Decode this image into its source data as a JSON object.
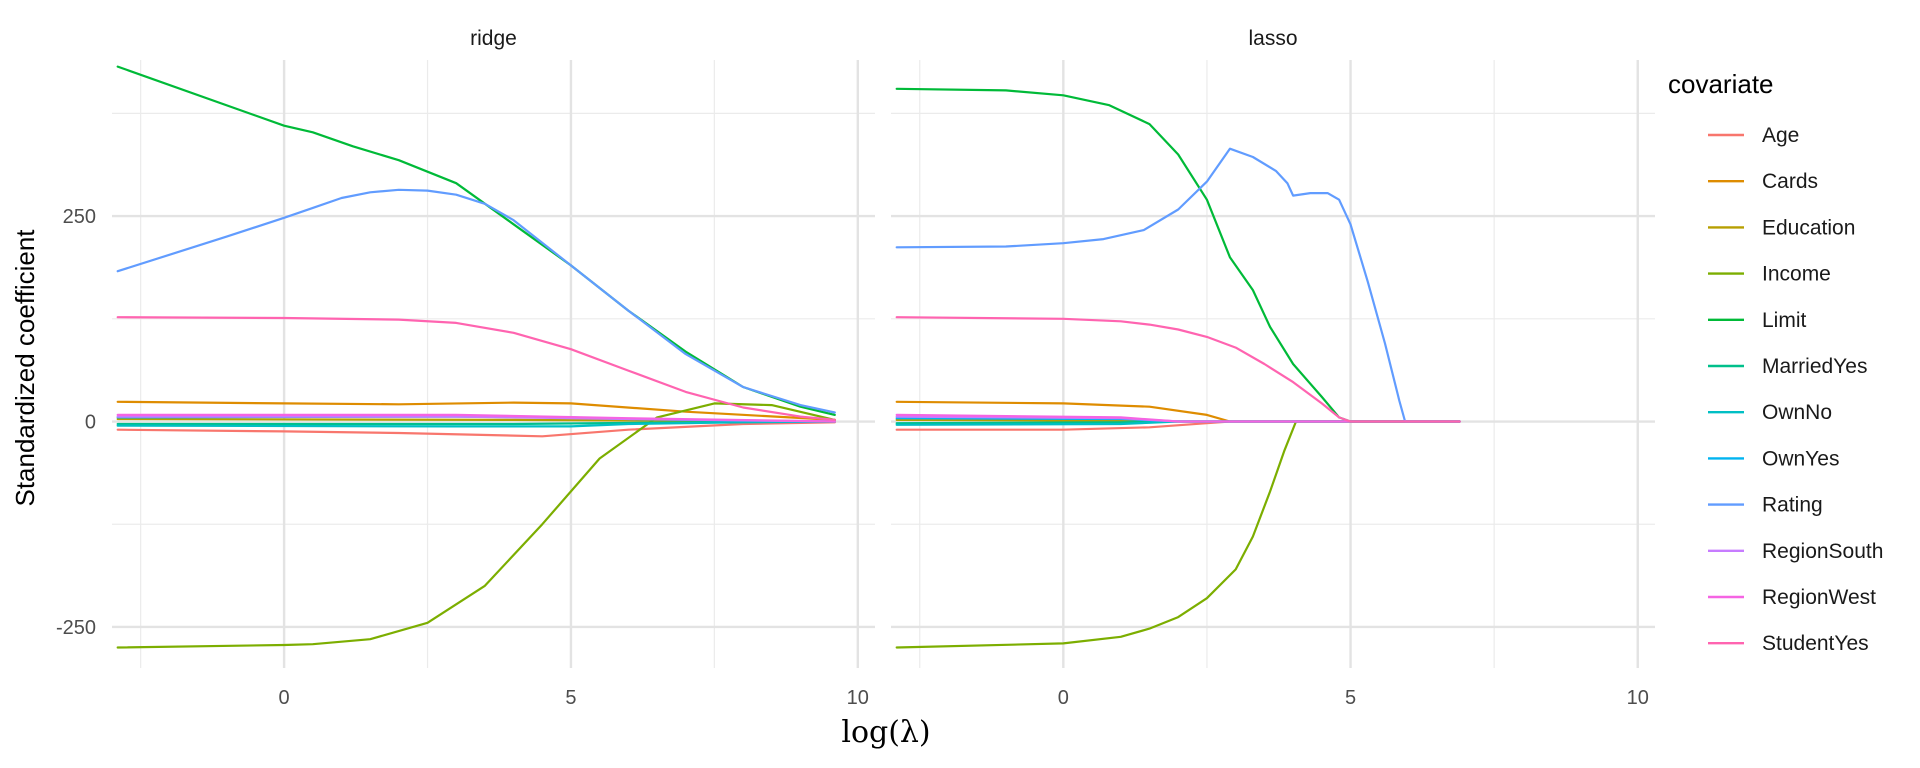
{
  "chart_data": {
    "type": "line",
    "xlabel": "log(λ)",
    "ylabel": "Standardized coefficient",
    "xlim": [
      -3,
      10.3
    ],
    "ylim": [
      -300,
      440
    ],
    "x_ticks": [
      0,
      5,
      10
    ],
    "y_ticks": [
      -250,
      0,
      250
    ],
    "legend": {
      "title": "covariate",
      "position": "right",
      "entries": [
        {
          "name": "Age",
          "color": "#F8766D"
        },
        {
          "name": "Cards",
          "color": "#DE8C00"
        },
        {
          "name": "Education",
          "color": "#B79F00"
        },
        {
          "name": "Income",
          "color": "#7CAE00"
        },
        {
          "name": "Limit",
          "color": "#00BA38"
        },
        {
          "name": "MarriedYes",
          "color": "#00C08B"
        },
        {
          "name": "OwnNo",
          "color": "#00BFC4"
        },
        {
          "name": "OwnYes",
          "color": "#00B4F0"
        },
        {
          "name": "Rating",
          "color": "#619CFF"
        },
        {
          "name": "RegionSouth",
          "color": "#C77CFF"
        },
        {
          "name": "RegionWest",
          "color": "#F564E3"
        },
        {
          "name": "StudentYes",
          "color": "#FF64B0"
        }
      ]
    },
    "panels": [
      {
        "title": "ridge",
        "series": [
          {
            "name": "Age",
            "points": [
              [
                -2.9,
                -10
              ],
              [
                0,
                -12
              ],
              [
                2,
                -14
              ],
              [
                4.5,
                -18
              ],
              [
                6,
                -10
              ],
              [
                8,
                -3
              ],
              [
                9.6,
                -1
              ]
            ]
          },
          {
            "name": "Cards",
            "points": [
              [
                -2.9,
                24
              ],
              [
                0,
                22
              ],
              [
                2,
                21
              ],
              [
                4,
                23
              ],
              [
                5,
                22
              ],
              [
                7,
                12
              ],
              [
                9.6,
                2
              ]
            ]
          },
          {
            "name": "Education",
            "points": [
              [
                -2.9,
                3
              ],
              [
                4,
                2
              ],
              [
                7,
                1
              ],
              [
                9.6,
                0
              ]
            ]
          },
          {
            "name": "Income",
            "points": [
              [
                -2.9,
                -275
              ],
              [
                0,
                -272
              ],
              [
                0.5,
                -271
              ],
              [
                1.5,
                -265
              ],
              [
                2.5,
                -245
              ],
              [
                3.5,
                -200
              ],
              [
                4.5,
                -125
              ],
              [
                5.5,
                -45
              ],
              [
                6.5,
                5
              ],
              [
                7.5,
                22
              ],
              [
                8.5,
                20
              ],
              [
                9.6,
                2
              ]
            ]
          },
          {
            "name": "Limit",
            "points": [
              [
                -2.9,
                432
              ],
              [
                0,
                360
              ],
              [
                0.5,
                352
              ],
              [
                1.2,
                335
              ],
              [
                2,
                318
              ],
              [
                3,
                290
              ],
              [
                4,
                240
              ],
              [
                5,
                190
              ],
              [
                6,
                135
              ],
              [
                7,
                85
              ],
              [
                8,
                42
              ],
              [
                9,
                18
              ],
              [
                9.6,
                8
              ]
            ]
          },
          {
            "name": "MarriedYes",
            "points": [
              [
                -2.9,
                -3
              ],
              [
                4,
                -3
              ],
              [
                7,
                -1
              ],
              [
                9.6,
                0
              ]
            ]
          },
          {
            "name": "OwnNo",
            "points": [
              [
                -2.9,
                -5
              ],
              [
                3,
                -6
              ],
              [
                5,
                -6
              ],
              [
                6,
                -3
              ],
              [
                8,
                -1
              ],
              [
                9.6,
                0
              ]
            ]
          },
          {
            "name": "OwnYes",
            "points": [
              [
                -2.9,
                5
              ],
              [
                3,
                6
              ],
              [
                5,
                5
              ],
              [
                6,
                3
              ],
              [
                8,
                1
              ],
              [
                9.6,
                0
              ]
            ]
          },
          {
            "name": "Rating",
            "points": [
              [
                -2.9,
                183
              ],
              [
                -1,
                225
              ],
              [
                0,
                248
              ],
              [
                0.5,
                260
              ],
              [
                1,
                272
              ],
              [
                1.5,
                279
              ],
              [
                2,
                282
              ],
              [
                2.5,
                281
              ],
              [
                3,
                276
              ],
              [
                3.5,
                265
              ],
              [
                4,
                245
              ],
              [
                5,
                190
              ],
              [
                6,
                135
              ],
              [
                7,
                82
              ],
              [
                8,
                42
              ],
              [
                9,
                20
              ],
              [
                9.6,
                11
              ]
            ]
          },
          {
            "name": "RegionSouth",
            "points": [
              [
                -2.9,
                6
              ],
              [
                3,
                6
              ],
              [
                6,
                3
              ],
              [
                9.6,
                0
              ]
            ]
          },
          {
            "name": "RegionWest",
            "points": [
              [
                -2.9,
                8
              ],
              [
                3,
                8
              ],
              [
                6,
                4
              ],
              [
                9.6,
                0
              ]
            ]
          },
          {
            "name": "StudentYes",
            "points": [
              [
                -2.9,
                127
              ],
              [
                0,
                126
              ],
              [
                2,
                124
              ],
              [
                3,
                120
              ],
              [
                4,
                108
              ],
              [
                5,
                88
              ],
              [
                6,
                62
              ],
              [
                7,
                36
              ],
              [
                8,
                17
              ],
              [
                9,
                6
              ],
              [
                9.6,
                2
              ]
            ]
          }
        ]
      },
      {
        "title": "lasso",
        "series": [
          {
            "name": "Age",
            "points": [
              [
                -2.9,
                -10
              ],
              [
                0,
                -10
              ],
              [
                1.5,
                -7
              ],
              [
                2.5,
                -2
              ],
              [
                2.9,
                0
              ],
              [
                6.9,
                0
              ]
            ]
          },
          {
            "name": "Cards",
            "points": [
              [
                -2.9,
                24
              ],
              [
                0,
                22
              ],
              [
                1.5,
                18
              ],
              [
                2.5,
                8
              ],
              [
                2.9,
                0
              ],
              [
                6.9,
                0
              ]
            ]
          },
          {
            "name": "Education",
            "points": [
              [
                -2.9,
                2
              ],
              [
                1,
                1
              ],
              [
                2,
                0
              ],
              [
                6.9,
                0
              ]
            ]
          },
          {
            "name": "Income",
            "points": [
              [
                -2.9,
                -275
              ],
              [
                0,
                -270
              ],
              [
                1,
                -262
              ],
              [
                1.5,
                -252
              ],
              [
                2,
                -238
              ],
              [
                2.5,
                -215
              ],
              [
                3,
                -180
              ],
              [
                3.3,
                -140
              ],
              [
                3.6,
                -85
              ],
              [
                3.85,
                -35
              ],
              [
                4.05,
                0
              ],
              [
                6.9,
                0
              ]
            ]
          },
          {
            "name": "Limit",
            "points": [
              [
                -2.9,
                405
              ],
              [
                -1,
                403
              ],
              [
                0,
                397
              ],
              [
                0.8,
                385
              ],
              [
                1.5,
                362
              ],
              [
                2,
                325
              ],
              [
                2.5,
                270
              ],
              [
                2.9,
                200
              ],
              [
                3.3,
                160
              ],
              [
                3.6,
                115
              ],
              [
                4,
                70
              ],
              [
                4.5,
                30
              ],
              [
                4.8,
                5
              ],
              [
                5,
                0
              ],
              [
                6.9,
                0
              ]
            ]
          },
          {
            "name": "MarriedYes",
            "points": [
              [
                -2.9,
                -2
              ],
              [
                1,
                -1
              ],
              [
                2,
                0
              ],
              [
                6.9,
                0
              ]
            ]
          },
          {
            "name": "OwnNo",
            "points": [
              [
                -2.9,
                -4
              ],
              [
                1,
                -3
              ],
              [
                2,
                0
              ],
              [
                6.9,
                0
              ]
            ]
          },
          {
            "name": "OwnYes",
            "points": [
              [
                -2.9,
                4
              ],
              [
                1,
                3
              ],
              [
                2,
                0
              ],
              [
                6.9,
                0
              ]
            ]
          },
          {
            "name": "Rating",
            "points": [
              [
                -2.9,
                212
              ],
              [
                -1,
                213
              ],
              [
                0,
                217
              ],
              [
                0.7,
                222
              ],
              [
                1.4,
                233
              ],
              [
                2,
                258
              ],
              [
                2.5,
                292
              ],
              [
                2.9,
                332
              ],
              [
                3.3,
                322
              ],
              [
                3.7,
                305
              ],
              [
                3.9,
                290
              ],
              [
                4,
                275
              ],
              [
                4.3,
                278
              ],
              [
                4.6,
                278
              ],
              [
                4.8,
                270
              ],
              [
                5,
                240
              ],
              [
                5.3,
                170
              ],
              [
                5.6,
                95
              ],
              [
                5.85,
                25
              ],
              [
                5.95,
                0
              ],
              [
                6.9,
                0
              ]
            ]
          },
          {
            "name": "RegionSouth",
            "points": [
              [
                -2.9,
                6
              ],
              [
                1,
                4
              ],
              [
                2,
                0
              ],
              [
                6.9,
                0
              ]
            ]
          },
          {
            "name": "RegionWest",
            "points": [
              [
                -2.9,
                8
              ],
              [
                1,
                5
              ],
              [
                2,
                0
              ],
              [
                6.9,
                0
              ]
            ]
          },
          {
            "name": "StudentYes",
            "points": [
              [
                -2.9,
                127
              ],
              [
                0,
                125
              ],
              [
                1,
                122
              ],
              [
                1.5,
                118
              ],
              [
                2,
                112
              ],
              [
                2.5,
                103
              ],
              [
                3,
                90
              ],
              [
                3.5,
                70
              ],
              [
                4,
                48
              ],
              [
                4.5,
                22
              ],
              [
                4.8,
                5
              ],
              [
                5,
                0
              ],
              [
                6.9,
                0
              ]
            ]
          }
        ]
      }
    ]
  }
}
